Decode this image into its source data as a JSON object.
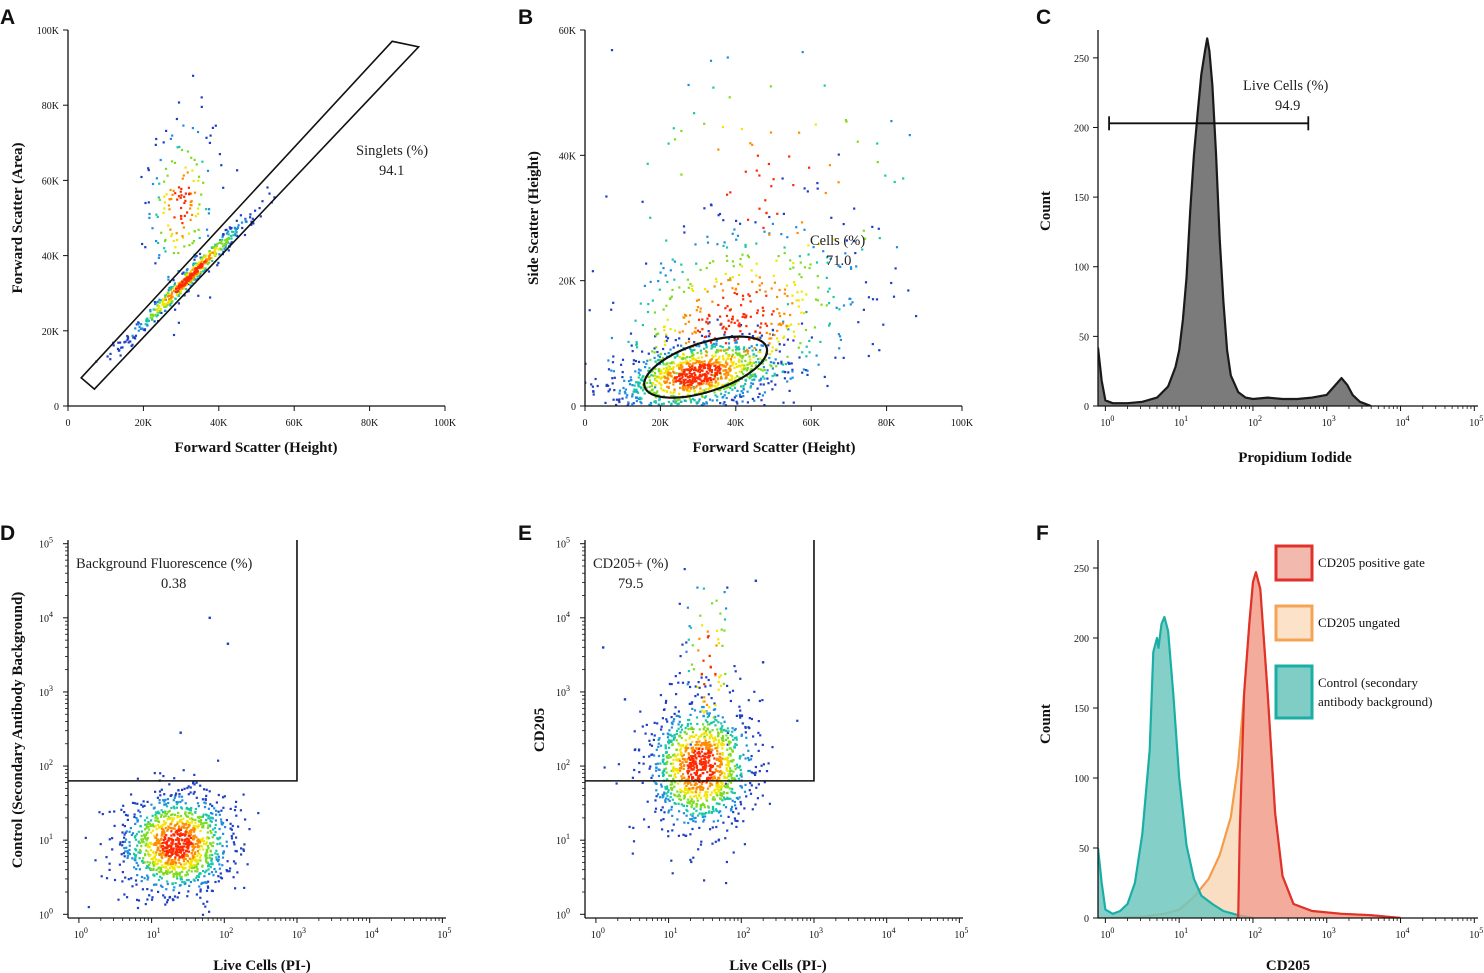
{
  "chart_data": [
    {
      "id": "A",
      "panel_letter": "A",
      "type": "scatter",
      "xlabel": "Forward Scatter (Height)",
      "ylabel": "Forward Scatter (Area)",
      "xlim": [
        0,
        100000
      ],
      "ylim": [
        0,
        100000
      ],
      "xticks": [
        {
          "v": 0,
          "label": "0"
        },
        {
          "v": 20000,
          "label": "20K"
        },
        {
          "v": 40000,
          "label": "40K"
        },
        {
          "v": 60000,
          "label": "60K"
        },
        {
          "v": 80000,
          "label": "80K"
        },
        {
          "v": 100000,
          "label": "100K"
        }
      ],
      "yticks": [
        {
          "v": 0,
          "label": "0"
        },
        {
          "v": 20000,
          "label": "20K"
        },
        {
          "v": 40000,
          "label": "40K"
        },
        {
          "v": 60000,
          "label": "60K"
        },
        {
          "v": 80000,
          "label": "80K"
        },
        {
          "v": 100000,
          "label": "100K"
        }
      ],
      "gate": {
        "shape": "polygon",
        "name": "Singlets (%)",
        "value": "94.1",
        "vertices": [
          [
            3500,
            7500
          ],
          [
            86000,
            97000
          ],
          [
            93000,
            95500
          ],
          [
            7000,
            4500
          ]
        ]
      },
      "clusters": [
        {
          "n": 500,
          "cx": 32000,
          "cy": 34000,
          "sx": 8000,
          "sy": 8200,
          "rho": 0.985
        },
        {
          "n": 170,
          "cx": 30000,
          "cy": 54000,
          "sx": 4500,
          "sy": 11000,
          "rho": 0.15
        }
      ]
    },
    {
      "id": "B",
      "panel_letter": "B",
      "type": "scatter",
      "xlabel": "Forward Scatter (Height)",
      "ylabel": "Side Scatter (Height)",
      "xlim": [
        0,
        100000
      ],
      "ylim": [
        0,
        60000
      ],
      "xticks": [
        {
          "v": 0,
          "label": "0"
        },
        {
          "v": 20000,
          "label": "20K"
        },
        {
          "v": 40000,
          "label": "40K"
        },
        {
          "v": 60000,
          "label": "60K"
        },
        {
          "v": 80000,
          "label": "80K"
        },
        {
          "v": 100000,
          "label": "100K"
        }
      ],
      "yticks": [
        {
          "v": 0,
          "label": "0"
        },
        {
          "v": 20000,
          "label": "20K"
        },
        {
          "v": 40000,
          "label": "40K"
        },
        {
          "v": 60000,
          "label": "60K"
        }
      ],
      "gate": {
        "shape": "ellipse",
        "name": "Cells (%)",
        "value": "71.0",
        "center": [
          32000,
          6200
        ],
        "rx": 17000,
        "ry": 3900,
        "rotation_deg": -18
      },
      "clusters": [
        {
          "n": 1000,
          "cx": 30000,
          "cy": 5000,
          "sx": 11000,
          "sy": 3000,
          "rho": 0.4
        },
        {
          "n": 550,
          "cx": 40000,
          "cy": 14000,
          "sx": 18000,
          "sy": 8000,
          "rho": 0.3
        },
        {
          "n": 90,
          "cx": 50000,
          "cy": 35000,
          "sx": 22000,
          "sy": 12000,
          "rho": 0.0
        }
      ]
    },
    {
      "id": "C",
      "panel_letter": "C",
      "type": "histogram",
      "xlabel": "Propidium Iodide",
      "ylabel": "Count",
      "xscale": "log",
      "xlim_log10": [
        -0.1,
        5.05
      ],
      "ylim": [
        0,
        270
      ],
      "xticks": [
        {
          "exp": 0,
          "base": "10",
          "sup": "0"
        },
        {
          "exp": 1,
          "base": "10",
          "sup": "1"
        },
        {
          "exp": 2,
          "base": "10",
          "sup": "2"
        },
        {
          "exp": 3,
          "base": "10",
          "sup": "3"
        },
        {
          "exp": 4,
          "base": "10",
          "sup": "4"
        },
        {
          "exp": 5,
          "base": "10",
          "sup": "5"
        }
      ],
      "yticks": [
        {
          "v": 0,
          "label": "0"
        },
        {
          "v": 50,
          "label": "50"
        },
        {
          "v": 100,
          "label": "100"
        },
        {
          "v": 150,
          "label": "150"
        },
        {
          "v": 200,
          "label": "200"
        },
        {
          "v": 250,
          "label": "250"
        }
      ],
      "gate": {
        "shape": "range",
        "name": "Live Cells (%)",
        "value": "94.9",
        "from_log10": 0.05,
        "to_log10": 2.75,
        "y": 203
      },
      "series": [
        {
          "name": "Propidium Iodide",
          "fill": "#7b7b7b",
          "stroke": "#1a1a1a",
          "points": [
            [
              -0.1,
              42
            ],
            [
              -0.05,
              18
            ],
            [
              0.0,
              4
            ],
            [
              0.1,
              2
            ],
            [
              0.3,
              2
            ],
            [
              0.5,
              3
            ],
            [
              0.7,
              6
            ],
            [
              0.85,
              14
            ],
            [
              0.95,
              28
            ],
            [
              1.0,
              40
            ],
            [
              1.05,
              62
            ],
            [
              1.1,
              92
            ],
            [
              1.15,
              140
            ],
            [
              1.2,
              180
            ],
            [
              1.25,
              210
            ],
            [
              1.3,
              238
            ],
            [
              1.35,
              255
            ],
            [
              1.38,
              264
            ],
            [
              1.41,
              255
            ],
            [
              1.45,
              230
            ],
            [
              1.5,
              180
            ],
            [
              1.55,
              120
            ],
            [
              1.6,
              75
            ],
            [
              1.65,
              40
            ],
            [
              1.7,
              22
            ],
            [
              1.8,
              10
            ],
            [
              1.9,
              6
            ],
            [
              2.0,
              5
            ],
            [
              2.2,
              6
            ],
            [
              2.4,
              5
            ],
            [
              2.6,
              5
            ],
            [
              2.8,
              6
            ],
            [
              3.0,
              8
            ],
            [
              3.1,
              14
            ],
            [
              3.2,
              20
            ],
            [
              3.28,
              15
            ],
            [
              3.35,
              8
            ],
            [
              3.45,
              3
            ],
            [
              3.6,
              0
            ]
          ]
        }
      ]
    },
    {
      "id": "D",
      "panel_letter": "D",
      "type": "scatter",
      "xlabel": "Live Cells (PI-)",
      "ylabel": "Control (Secondary Antibody Background)",
      "xscale": "log",
      "yscale": "log",
      "xlim_log10": [
        -0.15,
        5.05
      ],
      "ylim_log10": [
        -0.05,
        5.05
      ],
      "xticks": [
        {
          "exp": 0,
          "base": "10",
          "sup": "0"
        },
        {
          "exp": 1,
          "base": "10",
          "sup": "1"
        },
        {
          "exp": 2,
          "base": "10",
          "sup": "2"
        },
        {
          "exp": 3,
          "base": "10",
          "sup": "3"
        },
        {
          "exp": 4,
          "base": "10",
          "sup": "4"
        },
        {
          "exp": 5,
          "base": "10",
          "sup": "5"
        }
      ],
      "yticks": [
        {
          "exp": 0,
          "base": "10",
          "sup": "0"
        },
        {
          "exp": 1,
          "base": "10",
          "sup": "1"
        },
        {
          "exp": 2,
          "base": "10",
          "sup": "2"
        },
        {
          "exp": 3,
          "base": "10",
          "sup": "3"
        },
        {
          "exp": 4,
          "base": "10",
          "sup": "4"
        },
        {
          "exp": 5,
          "base": "10",
          "sup": "5"
        }
      ],
      "gate": {
        "shape": "quadrant",
        "name": "Background Fluorescence (%)",
        "value": "0.38",
        "x_log10": 3.0,
        "y_log10": 1.8
      },
      "clusters": [
        {
          "n": 1200,
          "cx": 1.35,
          "cy": 0.95,
          "sx": 0.38,
          "sy": 0.34,
          "rho": 0.05
        }
      ],
      "outliers": [
        [
          1.8,
          4.0
        ],
        [
          2.05,
          3.65
        ],
        [
          1.4,
          2.45
        ]
      ]
    },
    {
      "id": "E",
      "panel_letter": "E",
      "type": "scatter",
      "xlabel": "Live Cells (PI-)",
      "ylabel": "CD205",
      "xscale": "log",
      "yscale": "log",
      "xlim_log10": [
        -0.15,
        5.05
      ],
      "ylim_log10": [
        -0.05,
        5.05
      ],
      "xticks": [
        {
          "exp": 0,
          "base": "10",
          "sup": "0"
        },
        {
          "exp": 1,
          "base": "10",
          "sup": "1"
        },
        {
          "exp": 2,
          "base": "10",
          "sup": "2"
        },
        {
          "exp": 3,
          "base": "10",
          "sup": "3"
        },
        {
          "exp": 4,
          "base": "10",
          "sup": "4"
        },
        {
          "exp": 5,
          "base": "10",
          "sup": "5"
        }
      ],
      "yticks": [
        {
          "exp": 0,
          "base": "10",
          "sup": "0"
        },
        {
          "exp": 1,
          "base": "10",
          "sup": "1"
        },
        {
          "exp": 2,
          "base": "10",
          "sup": "2"
        },
        {
          "exp": 3,
          "base": "10",
          "sup": "3"
        },
        {
          "exp": 4,
          "base": "10",
          "sup": "4"
        },
        {
          "exp": 5,
          "base": "10",
          "sup": "5"
        }
      ],
      "gate": {
        "shape": "quadrant",
        "name": "CD205+ (%)",
        "value": "79.5",
        "x_log10": 3.0,
        "y_log10": 1.8
      },
      "clusters": [
        {
          "n": 1150,
          "cx": 1.45,
          "cy": 2.0,
          "sx": 0.36,
          "sy": 0.42,
          "rho": 0.05
        },
        {
          "n": 80,
          "cx": 1.55,
          "cy": 3.4,
          "sx": 0.18,
          "sy": 0.7,
          "rho": 0.0
        }
      ],
      "outliers": [
        [
          2.2,
          4.5
        ],
        [
          0.1,
          3.6
        ],
        [
          2.3,
          3.4
        ],
        [
          0.4,
          2.9
        ]
      ]
    },
    {
      "id": "F",
      "panel_letter": "F",
      "type": "histogram",
      "xlabel": "CD205",
      "ylabel": "Count",
      "xscale": "log",
      "xlim_log10": [
        -0.1,
        5.05
      ],
      "ylim": [
        0,
        270
      ],
      "xticks": [
        {
          "exp": 0,
          "base": "10",
          "sup": "0"
        },
        {
          "exp": 1,
          "base": "10",
          "sup": "1"
        },
        {
          "exp": 2,
          "base": "10",
          "sup": "2"
        },
        {
          "exp": 3,
          "base": "10",
          "sup": "3"
        },
        {
          "exp": 4,
          "base": "10",
          "sup": "4"
        },
        {
          "exp": 5,
          "base": "10",
          "sup": "5"
        }
      ],
      "yticks": [
        {
          "v": 0,
          "label": "0"
        },
        {
          "v": 50,
          "label": "50"
        },
        {
          "v": 100,
          "label": "100"
        },
        {
          "v": 150,
          "label": "150"
        },
        {
          "v": 200,
          "label": "200"
        },
        {
          "v": 250,
          "label": "250"
        }
      ],
      "legend": [
        {
          "label_lines": [
            "CD205 positive gate"
          ],
          "fill": "#f2b9ae",
          "stroke": "#e0322b"
        },
        {
          "label_lines": [
            "CD205 ungated"
          ],
          "fill": "#fbe2c8",
          "stroke": "#f3a457"
        },
        {
          "label_lines": [
            "Control (secondary",
            "antibody background)"
          ],
          "fill": "#7fcdc5",
          "stroke": "#1aaea5"
        }
      ],
      "series": [
        {
          "name": "CD205 ungated",
          "fill": "#f9d6b4",
          "stroke": "#f39c4c",
          "opacity": 0.8,
          "points": [
            [
              -0.1,
              0
            ],
            [
              0.5,
              1
            ],
            [
              0.8,
              3
            ],
            [
              1.0,
              6
            ],
            [
              1.2,
              15
            ],
            [
              1.4,
              28
            ],
            [
              1.55,
              45
            ],
            [
              1.7,
              72
            ],
            [
              1.8,
              110
            ],
            [
              1.88,
              160
            ],
            [
              1.95,
              210
            ],
            [
              2.0,
              240
            ],
            [
              2.04,
              247
            ],
            [
              2.1,
              235
            ],
            [
              2.2,
              160
            ],
            [
              2.3,
              75
            ],
            [
              2.4,
              30
            ],
            [
              2.55,
              10
            ],
            [
              2.8,
              5
            ],
            [
              3.2,
              3
            ],
            [
              3.6,
              2
            ],
            [
              3.8,
              1
            ],
            [
              4.0,
              0
            ]
          ]
        },
        {
          "name": "Control (secondary antibody background)",
          "fill": "#6ec8bf",
          "stroke": "#1aaea5",
          "opacity": 0.85,
          "points": [
            [
              -0.1,
              50
            ],
            [
              -0.05,
              25
            ],
            [
              0.0,
              6
            ],
            [
              0.1,
              3
            ],
            [
              0.2,
              5
            ],
            [
              0.3,
              10
            ],
            [
              0.4,
              25
            ],
            [
              0.5,
              60
            ],
            [
              0.6,
              120
            ],
            [
              0.65,
              190
            ],
            [
              0.7,
              200
            ],
            [
              0.72,
              193
            ],
            [
              0.76,
              210
            ],
            [
              0.8,
              215
            ],
            [
              0.85,
              205
            ],
            [
              0.92,
              160
            ],
            [
              1.0,
              100
            ],
            [
              1.1,
              52
            ],
            [
              1.2,
              28
            ],
            [
              1.3,
              16
            ],
            [
              1.45,
              10
            ],
            [
              1.6,
              5
            ],
            [
              1.8,
              2
            ],
            [
              2.0,
              0
            ]
          ]
        },
        {
          "name": "CD205 positive gate",
          "fill": "#f09a8e",
          "stroke": "#e0322b",
          "opacity": 0.75,
          "points": [
            [
              1.8,
              0
            ],
            [
              1.82,
              60
            ],
            [
              1.88,
              160
            ],
            [
              1.95,
              210
            ],
            [
              2.0,
              240
            ],
            [
              2.04,
              247
            ],
            [
              2.1,
              235
            ],
            [
              2.2,
              160
            ],
            [
              2.3,
              75
            ],
            [
              2.4,
              30
            ],
            [
              2.55,
              10
            ],
            [
              2.8,
              5
            ],
            [
              3.2,
              3
            ],
            [
              3.6,
              2
            ],
            [
              3.8,
              1
            ],
            [
              4.0,
              0
            ]
          ]
        }
      ]
    }
  ]
}
